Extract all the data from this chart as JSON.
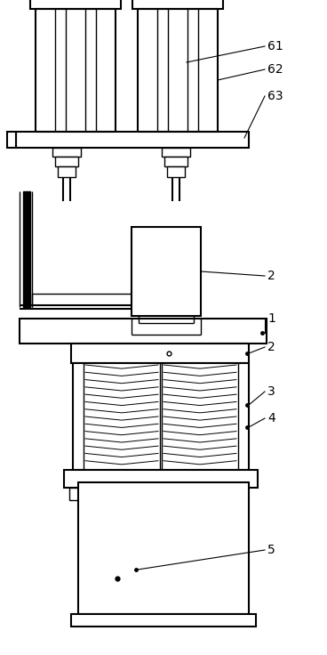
{
  "bg_color": "#ffffff",
  "line_color": "#000000",
  "lw_thick": 2.0,
  "lw_med": 1.5,
  "lw_thin": 1.0,
  "lw_hair": 0.7
}
